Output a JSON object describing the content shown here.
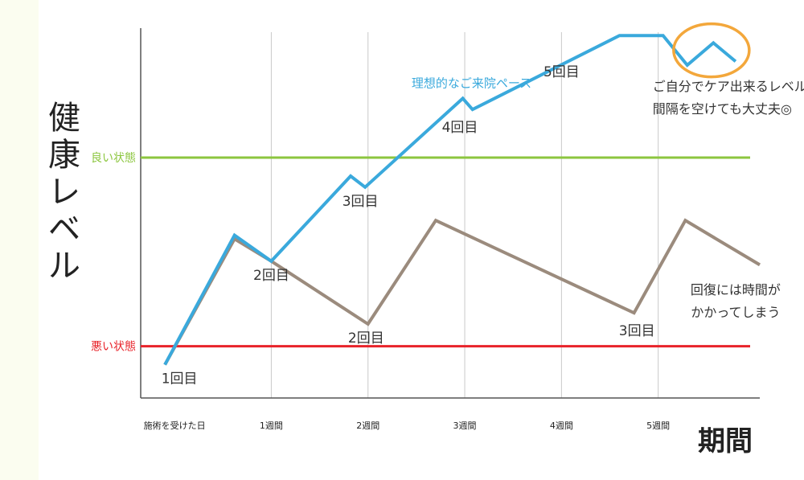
{
  "chart_data": {
    "type": "line",
    "ylabel": "健康レベル",
    "xlabel": "期間",
    "x_ticks": [
      {
        "x": 0,
        "label": "施術を受けた日"
      },
      {
        "x": 1,
        "label": "1週間"
      },
      {
        "x": 2,
        "label": "2週間"
      },
      {
        "x": 3,
        "label": "3週間"
      },
      {
        "x": 4,
        "label": "4週間"
      },
      {
        "x": 5,
        "label": "5週間"
      }
    ],
    "xlim": [
      -0.35,
      6.05
    ],
    "ylim": [
      0,
      100
    ],
    "reference_lines": [
      {
        "label": "良い状態",
        "y": 65,
        "color": "#8cc63f"
      },
      {
        "label": "悪い状態",
        "y": 14,
        "color": "#e8232a"
      }
    ],
    "series": [
      {
        "name": "理想的なご来院ペース",
        "color": "#3aa9dc",
        "points": [
          [
            -0.1,
            9
          ],
          [
            0.62,
            44
          ],
          [
            1.0,
            37
          ],
          [
            1.82,
            60
          ],
          [
            1.97,
            57
          ],
          [
            2.98,
            81
          ],
          [
            3.08,
            78
          ],
          [
            4.6,
            98
          ],
          [
            5.05,
            98
          ],
          [
            5.3,
            90
          ],
          [
            5.57,
            96
          ],
          [
            5.8,
            91
          ]
        ]
      },
      {
        "name": "",
        "color": "#9b8b7d",
        "points": [
          [
            -0.1,
            9
          ],
          [
            0.62,
            43
          ],
          [
            1.0,
            37
          ],
          [
            2.0,
            20
          ],
          [
            2.7,
            48
          ],
          [
            4.75,
            23
          ],
          [
            5.28,
            48
          ],
          [
            6.05,
            36
          ]
        ]
      }
    ],
    "annotations": [
      {
        "text": "1回目",
        "x": 0.05,
        "y": 4
      },
      {
        "text": "2回目",
        "x": 1.0,
        "y": 32
      },
      {
        "text": "3回目",
        "x": 1.92,
        "y": 52
      },
      {
        "text": "4回目",
        "x": 2.95,
        "y": 72
      },
      {
        "text": "5回目",
        "x": 4.0,
        "y": 87
      },
      {
        "text": "2回目",
        "x": 1.98,
        "y": 15
      },
      {
        "text": "3回目",
        "x": 4.78,
        "y": 17
      }
    ],
    "notes": [
      {
        "lines": [
          "ご自分でケア出来るレベル",
          "間隔を空けても大丈夫◎"
        ],
        "x": 5.4,
        "y": 83
      },
      {
        "lines": [
          "回復には時間が",
          "かかってしまう"
        ],
        "x": 5.8,
        "y": 28
      }
    ],
    "highlight": {
      "x": 5.55,
      "y": 94,
      "color": "#f3a73b"
    }
  }
}
